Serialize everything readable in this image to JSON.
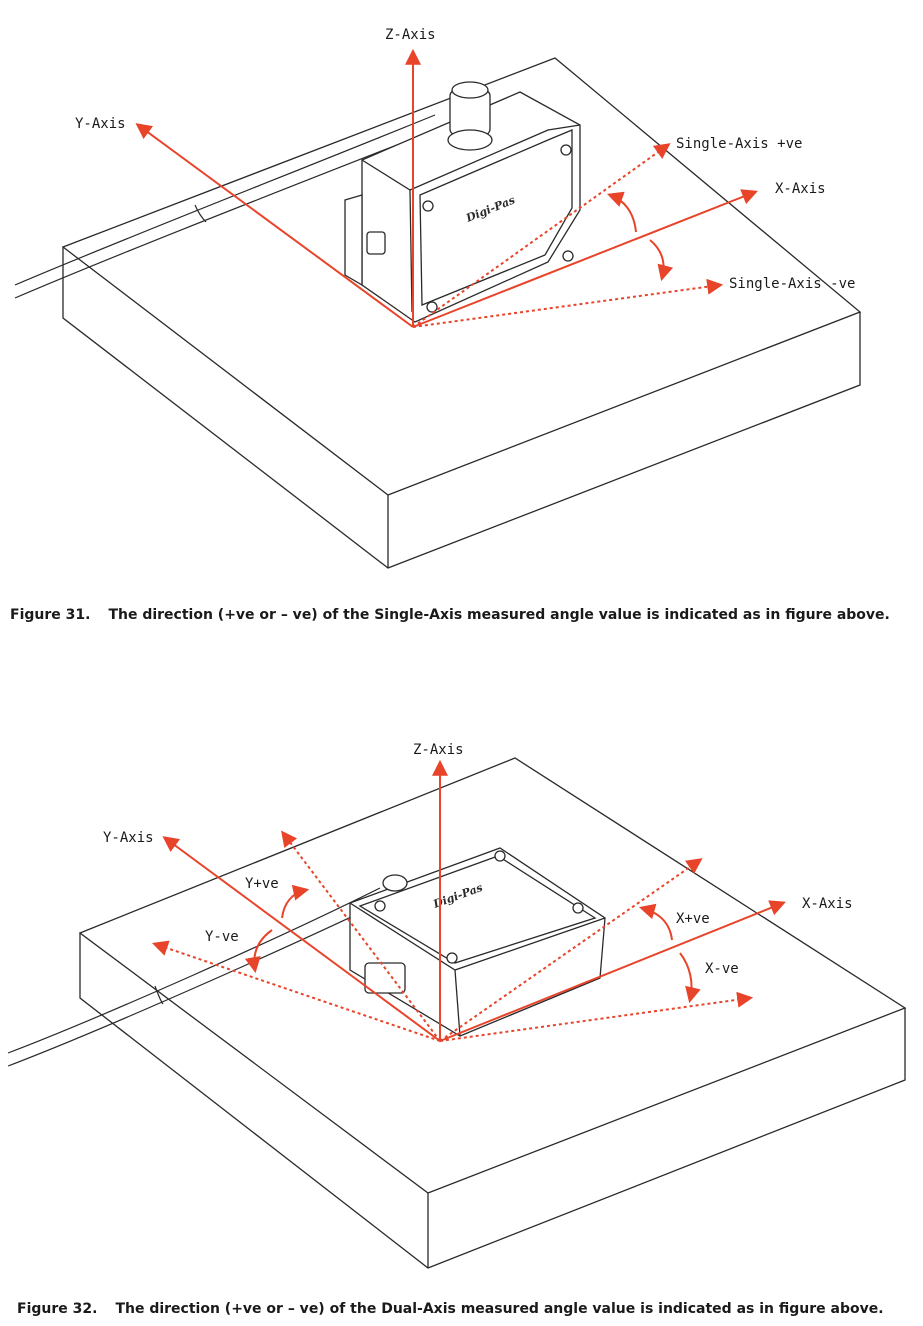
{
  "figure31": {
    "labels": {
      "z_axis": "Z-Axis",
      "y_axis": "Y-Axis",
      "x_axis": "X-Axis",
      "single_pos": "Single-Axis +ve",
      "single_neg": "Single-Axis -ve"
    },
    "device_brand": "Digi-Pas",
    "caption_number": "Figure 31.",
    "caption_text": "The direction (+ve or – ve) of the Single-Axis measured angle value is indicated as in figure above."
  },
  "figure32": {
    "labels": {
      "z_axis": "Z-Axis",
      "y_axis": "Y-Axis",
      "x_axis": "X-Axis",
      "y_pos": "Y+ve",
      "y_neg": "Y-ve",
      "x_pos": "X+ve",
      "x_neg": "X-ve"
    },
    "device_brand": "Digi-Pas",
    "caption_number": "Figure 32.",
    "caption_text": "The direction (+ve or – ve) of the Dual-Axis measured angle value is indicated as in figure above."
  },
  "colors": {
    "axis": "#e8442a",
    "outline": "#2a2a2a"
  }
}
